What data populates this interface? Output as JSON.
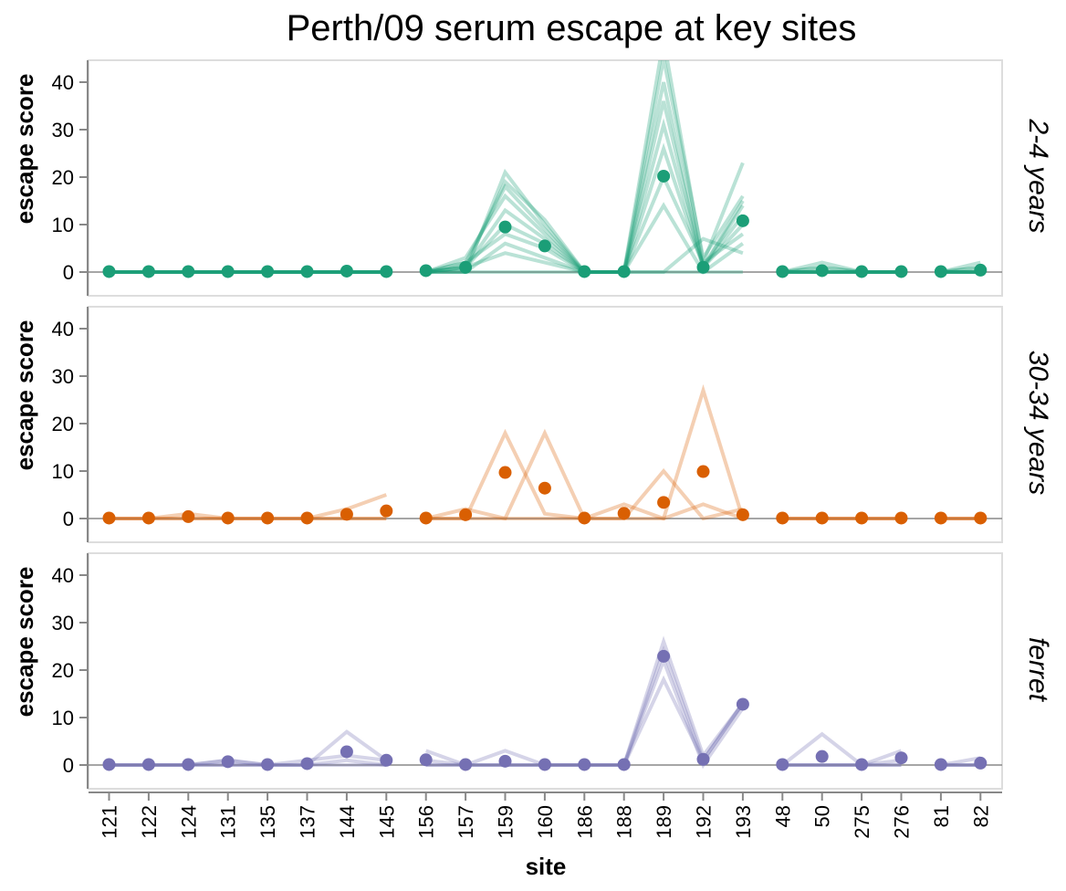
{
  "chart_data": {
    "type": "line",
    "title": "Perth/09 serum escape at key sites",
    "xlabel": "site",
    "ylabel": "escape score",
    "ylim": [
      0,
      45
    ],
    "yticks": [
      0,
      10,
      20,
      30,
      40
    ],
    "grid": false,
    "legend": "none",
    "categories": [
      "121",
      "122",
      "124",
      "131",
      "135",
      "137",
      "144",
      "145",
      "156",
      "157",
      "159",
      "160",
      "186",
      "188",
      "189",
      "192",
      "193",
      "48",
      "50",
      "275",
      "276",
      "81",
      "82"
    ],
    "segments": [
      [
        "121",
        "122",
        "124",
        "131",
        "135",
        "137",
        "144",
        "145"
      ],
      [
        "156",
        "157",
        "159",
        "160",
        "186",
        "188",
        "189",
        "192",
        "193"
      ],
      [
        "48",
        "50",
        "275",
        "276"
      ],
      [
        "81",
        "82"
      ]
    ],
    "facets": [
      {
        "name": "2-4 years",
        "color": "#1b9e77",
        "mean": [
          0.1,
          0.1,
          0.1,
          0.1,
          0.1,
          0.1,
          0.2,
          0.1,
          0.3,
          1,
          9.5,
          5.5,
          0.1,
          0.1,
          20.2,
          1,
          10.8,
          0.1,
          0.3,
          0.1,
          0.1,
          0.1,
          0.4
        ],
        "individuals": [
          [
            0,
            0,
            0,
            0,
            0,
            0,
            0,
            0,
            0,
            0,
            21,
            10,
            0,
            0,
            49,
            2,
            23,
            0,
            2,
            0,
            0,
            0,
            2
          ],
          [
            0,
            0,
            0,
            0,
            0,
            0,
            0,
            0,
            0,
            1,
            19,
            11,
            0,
            0,
            45,
            3,
            16,
            0,
            1,
            0,
            0,
            0,
            1
          ],
          [
            0,
            0,
            0,
            0,
            0,
            0,
            0,
            0,
            0,
            2,
            18,
            9,
            0,
            0,
            40,
            1,
            15,
            0,
            0,
            0,
            0,
            0,
            0
          ],
          [
            0,
            0,
            0,
            0,
            0,
            0,
            0,
            0,
            0,
            3,
            16,
            8,
            0,
            0,
            36,
            1,
            14,
            0,
            0,
            0,
            0,
            0,
            0
          ],
          [
            0,
            0,
            0,
            0,
            0,
            0,
            0,
            0,
            0,
            1,
            13,
            7,
            0,
            0,
            31,
            1,
            12,
            0,
            1,
            0,
            0,
            0,
            0
          ],
          [
            0,
            0,
            0,
            0,
            0,
            0,
            0,
            0,
            0,
            1,
            10,
            6,
            0,
            0,
            26,
            1,
            10,
            0,
            0,
            0,
            0,
            0,
            1
          ],
          [
            0,
            0,
            0,
            0,
            0,
            0,
            0,
            0,
            0,
            2,
            8,
            5,
            0,
            0,
            20,
            2,
            8,
            0,
            0,
            0,
            0,
            0,
            0
          ],
          [
            0,
            0,
            0,
            0,
            0,
            0,
            0,
            0,
            0,
            0,
            6,
            3,
            0,
            0,
            14,
            0,
            6,
            0,
            0,
            0,
            0,
            0,
            0
          ],
          [
            0,
            0,
            0,
            0,
            0,
            0,
            0,
            0,
            0,
            1,
            4,
            2,
            0,
            0,
            0,
            7,
            4,
            0,
            0,
            0,
            0,
            0,
            0
          ],
          [
            0,
            0,
            0,
            0,
            0,
            0,
            0,
            0,
            0,
            0,
            0,
            0,
            0,
            0,
            0,
            0,
            0,
            0,
            0,
            0,
            0,
            0,
            0
          ]
        ]
      },
      {
        "name": "30-34 years",
        "color": "#d95f02",
        "mean": [
          0.1,
          0.1,
          0.4,
          0.1,
          0.1,
          0.1,
          0.9,
          1.6,
          0.1,
          0.8,
          9.7,
          6.4,
          0.1,
          1.1,
          3.4,
          9.9,
          0.8,
          0.1,
          0.1,
          0.1,
          0.1,
          0.1,
          0.1
        ],
        "individuals": [
          [
            0,
            0,
            0,
            0,
            0,
            0,
            0,
            0,
            0,
            0,
            18,
            1,
            0,
            0,
            0,
            27,
            0,
            0,
            0,
            0,
            0,
            0,
            0
          ],
          [
            0,
            0,
            0,
            0,
            0,
            0,
            0,
            0,
            0,
            0,
            0,
            18,
            0,
            0,
            10,
            0,
            2,
            0,
            0,
            0,
            0,
            0,
            0
          ],
          [
            0,
            0,
            1,
            0,
            0,
            0,
            2,
            5,
            0,
            2,
            0,
            0,
            0,
            3,
            0,
            3,
            0,
            0,
            0,
            0,
            0,
            0,
            0
          ]
        ]
      },
      {
        "name": "ferret",
        "color": "#7570b3",
        "mean": [
          0.1,
          0.1,
          0.1,
          0.7,
          0.1,
          0.3,
          2.8,
          1,
          1.1,
          0.1,
          0.8,
          0.1,
          0.1,
          0.1,
          22.9,
          1.2,
          12.8,
          0.1,
          1.8,
          0.1,
          1.5,
          0.1,
          0.4
        ],
        "individuals": [
          [
            0,
            0,
            0,
            1,
            0,
            0,
            7,
            1,
            3,
            0,
            3,
            0,
            0,
            0,
            26,
            2,
            13,
            0,
            6.5,
            0,
            3,
            0,
            1.5
          ],
          [
            0,
            0,
            0,
            1,
            0,
            1,
            2,
            1,
            1,
            0,
            0,
            0,
            0,
            0,
            24,
            1,
            13,
            0,
            0,
            0,
            1,
            0,
            0
          ],
          [
            0,
            0,
            0,
            0,
            0,
            0,
            1,
            0,
            0,
            0,
            0,
            0,
            0,
            0,
            22,
            0,
            12,
            0,
            0,
            0,
            0,
            0,
            0
          ],
          [
            0,
            0,
            0,
            0,
            0,
            0,
            0,
            0,
            0,
            0,
            0,
            0,
            0,
            0,
            18,
            1,
            13,
            0,
            0,
            0,
            0,
            0,
            0
          ]
        ]
      }
    ]
  }
}
